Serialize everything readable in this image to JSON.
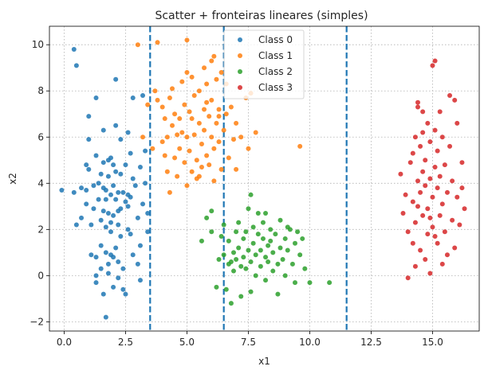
{
  "chart_data": {
    "type": "scatter",
    "title": "Scatter + fronteiras lineares (simples)",
    "xlabel": "x1",
    "ylabel": "x2",
    "xlim": [
      -0.6,
      16.9
    ],
    "ylim": [
      -2.4,
      10.8
    ],
    "xticks": [
      0.0,
      2.5,
      5.0,
      7.5,
      10.0,
      12.5,
      15.0
    ],
    "xtick_labels": [
      "0.0",
      "2.5",
      "5.0",
      "7.5",
      "10.0",
      "12.5",
      "15.0"
    ],
    "yticks": [
      -2,
      0,
      2,
      4,
      6,
      8,
      10
    ],
    "ytick_labels": [
      "−2",
      "0",
      "2",
      "4",
      "6",
      "8",
      "10"
    ],
    "grid": true,
    "legend_position": "top-center",
    "boundaries": {
      "x": [
        3.5,
        6.5,
        11.5
      ],
      "color": "#1f77b4",
      "style": "dashed"
    },
    "series": [
      {
        "name": "Class 0",
        "color": "#1f77b4",
        "points": [
          [
            -0.1,
            3.7
          ],
          [
            0.4,
            9.8
          ],
          [
            0.5,
            9.1
          ],
          [
            0.4,
            3.6
          ],
          [
            0.5,
            2.2
          ],
          [
            0.7,
            3.8
          ],
          [
            0.7,
            2.5
          ],
          [
            0.9,
            3.7
          ],
          [
            0.9,
            4.8
          ],
          [
            1.0,
            6.9
          ],
          [
            0.9,
            3.1
          ],
          [
            1.0,
            5.9
          ],
          [
            1.1,
            0.9
          ],
          [
            1.1,
            2.2
          ],
          [
            1.0,
            4.6
          ],
          [
            1.2,
            3.9
          ],
          [
            1.2,
            2.9
          ],
          [
            1.3,
            7.7
          ],
          [
            1.3,
            5.2
          ],
          [
            1.3,
            0.8
          ],
          [
            1.3,
            -0.3
          ],
          [
            1.3,
            0.0
          ],
          [
            1.4,
            3.3
          ],
          [
            1.4,
            4.0
          ],
          [
            1.5,
            2.4
          ],
          [
            1.5,
            1.3
          ],
          [
            1.5,
            0.3
          ],
          [
            1.5,
            4.4
          ],
          [
            1.6,
            3.8
          ],
          [
            1.6,
            4.9
          ],
          [
            1.6,
            2.8
          ],
          [
            1.6,
            6.3
          ],
          [
            1.6,
            -0.8
          ],
          [
            1.7,
            1.0
          ],
          [
            1.7,
            3.7
          ],
          [
            1.7,
            3.3
          ],
          [
            1.7,
            2.1
          ],
          [
            1.7,
            -1.8
          ],
          [
            1.8,
            5.0
          ],
          [
            1.8,
            4.3
          ],
          [
            1.8,
            2.7
          ],
          [
            1.8,
            0.5
          ],
          [
            1.8,
            0.1
          ],
          [
            1.9,
            3.5
          ],
          [
            1.9,
            5.1
          ],
          [
            1.9,
            1.9
          ],
          [
            1.9,
            0.9
          ],
          [
            2.0,
            4.8
          ],
          [
            2.0,
            2.6
          ],
          [
            2.0,
            3.9
          ],
          [
            2.0,
            0.8
          ],
          [
            2.0,
            -0.5
          ],
          [
            2.1,
            6.5
          ],
          [
            2.1,
            8.5
          ],
          [
            2.1,
            4.5
          ],
          [
            2.1,
            3.3
          ],
          [
            2.1,
            1.2
          ],
          [
            2.2,
            2.2
          ],
          [
            2.2,
            3.6
          ],
          [
            2.2,
            2.8
          ],
          [
            2.2,
            0.6
          ],
          [
            2.2,
            -0.1
          ],
          [
            2.3,
            5.9
          ],
          [
            2.3,
            4.4
          ],
          [
            2.3,
            2.9
          ],
          [
            2.3,
            1.7
          ],
          [
            2.4,
            3.6
          ],
          [
            2.4,
            0.3
          ],
          [
            2.4,
            -0.6
          ],
          [
            2.5,
            4.8
          ],
          [
            2.5,
            3.2
          ],
          [
            2.5,
            -0.8
          ],
          [
            2.6,
            6.2
          ],
          [
            2.6,
            3.5
          ],
          [
            2.6,
            2.0
          ],
          [
            2.7,
            5.3
          ],
          [
            2.7,
            3.4
          ],
          [
            2.7,
            1.8
          ],
          [
            2.8,
            7.7
          ],
          [
            2.8,
            4.2
          ],
          [
            2.8,
            0.9
          ],
          [
            3.0,
            2.5
          ],
          [
            3.0,
            0.5
          ],
          [
            3.1,
            4.7
          ],
          [
            3.1,
            1.3
          ],
          [
            3.1,
            -0.2
          ],
          [
            3.2,
            3.1
          ],
          [
            3.3,
            5.4
          ],
          [
            3.3,
            4.0
          ],
          [
            3.4,
            2.7
          ],
          [
            3.4,
            1.9
          ],
          [
            3.2,
            7.8
          ],
          [
            2.6,
            3.0
          ],
          [
            1.9,
            2.3
          ],
          [
            2.9,
            3.9
          ]
        ]
      },
      {
        "name": "Class 1",
        "color": "#ff7f0e",
        "points": [
          [
            3.0,
            10.0
          ],
          [
            3.8,
            10.1
          ],
          [
            5.0,
            10.2
          ],
          [
            3.8,
            7.6
          ],
          [
            4.0,
            7.3
          ],
          [
            4.1,
            6.8
          ],
          [
            4.2,
            6.0
          ],
          [
            4.2,
            4.5
          ],
          [
            4.3,
            3.6
          ],
          [
            4.4,
            8.1
          ],
          [
            4.4,
            6.5
          ],
          [
            4.5,
            5.1
          ],
          [
            4.5,
            7.0
          ],
          [
            4.6,
            4.3
          ],
          [
            4.7,
            6.8
          ],
          [
            4.7,
            5.5
          ],
          [
            4.8,
            6.2
          ],
          [
            4.9,
            7.4
          ],
          [
            4.9,
            4.9
          ],
          [
            5.0,
            6.0
          ],
          [
            5.0,
            8.8
          ],
          [
            5.0,
            3.9
          ],
          [
            5.1,
            7.1
          ],
          [
            5.1,
            5.4
          ],
          [
            5.2,
            6.8
          ],
          [
            5.2,
            4.5
          ],
          [
            5.3,
            6.1
          ],
          [
            5.3,
            7.8
          ],
          [
            5.4,
            5.0
          ],
          [
            5.4,
            4.2
          ],
          [
            5.5,
            6.6
          ],
          [
            5.5,
            8.0
          ],
          [
            5.6,
            5.7
          ],
          [
            5.6,
            4.7
          ],
          [
            5.7,
            7.2
          ],
          [
            5.7,
            6.3
          ],
          [
            5.8,
            8.3
          ],
          [
            5.8,
            5.2
          ],
          [
            5.9,
            6.9
          ],
          [
            5.9,
            4.8
          ],
          [
            6.0,
            7.6
          ],
          [
            6.0,
            6.0
          ],
          [
            6.0,
            9.3
          ],
          [
            6.1,
            5.5
          ],
          [
            6.1,
            4.1
          ],
          [
            6.2,
            8.5
          ],
          [
            6.2,
            6.6
          ],
          [
            6.3,
            7.2
          ],
          [
            6.3,
            5.8
          ],
          [
            6.4,
            8.8
          ],
          [
            6.4,
            4.6
          ],
          [
            6.5,
            6.3
          ],
          [
            6.6,
            8.3
          ],
          [
            6.7,
            5.1
          ],
          [
            6.8,
            7.3
          ],
          [
            7.0,
            4.6
          ],
          [
            7.0,
            6.6
          ],
          [
            7.2,
            6.0
          ],
          [
            7.4,
            7.7
          ],
          [
            7.5,
            5.5
          ],
          [
            7.6,
            7.9
          ],
          [
            7.8,
            6.2
          ],
          [
            9.6,
            5.6
          ],
          [
            3.2,
            6.0
          ],
          [
            3.4,
            7.4
          ],
          [
            3.6,
            5.5
          ],
          [
            3.7,
            8.0
          ],
          [
            4.0,
            5.8
          ],
          [
            4.3,
            7.7
          ],
          [
            4.6,
            6.1
          ],
          [
            5.2,
            8.6
          ],
          [
            5.7,
            9.0
          ],
          [
            6.1,
            9.5
          ],
          [
            6.6,
            7.0
          ],
          [
            5.5,
            4.3
          ],
          [
            4.8,
            8.4
          ],
          [
            6.3,
            6.9
          ],
          [
            5.8,
            7.5
          ],
          [
            4.1,
            5.2
          ],
          [
            6.9,
            5.9
          ]
        ]
      },
      {
        "name": "Class 2",
        "color": "#2ca02c",
        "points": [
          [
            5.8,
            2.5
          ],
          [
            6.0,
            2.8
          ],
          [
            5.6,
            1.5
          ],
          [
            6.0,
            1.9
          ],
          [
            6.2,
            -0.5
          ],
          [
            6.3,
            0.7
          ],
          [
            6.4,
            1.7
          ],
          [
            6.5,
            2.2
          ],
          [
            6.5,
            0.9
          ],
          [
            6.6,
            -0.6
          ],
          [
            6.7,
            0.5
          ],
          [
            6.7,
            1.5
          ],
          [
            6.8,
            0.6
          ],
          [
            6.8,
            -1.2
          ],
          [
            6.9,
            1.0
          ],
          [
            6.9,
            0.2
          ],
          [
            7.0,
            1.9
          ],
          [
            7.0,
            0.7
          ],
          [
            7.1,
            1.2
          ],
          [
            7.1,
            2.3
          ],
          [
            7.2,
            0.4
          ],
          [
            7.2,
            -0.9
          ],
          [
            7.3,
            1.6
          ],
          [
            7.3,
            0.8
          ],
          [
            7.4,
            1.9
          ],
          [
            7.4,
            0.3
          ],
          [
            7.5,
            2.9
          ],
          [
            7.5,
            1.1
          ],
          [
            7.6,
            0.6
          ],
          [
            7.6,
            -0.7
          ],
          [
            7.7,
            1.4
          ],
          [
            7.7,
            2.1
          ],
          [
            7.8,
            0.9
          ],
          [
            7.8,
            0.0
          ],
          [
            7.9,
            1.8
          ],
          [
            7.9,
            2.7
          ],
          [
            8.0,
            1.1
          ],
          [
            8.0,
            0.4
          ],
          [
            8.1,
            1.6
          ],
          [
            8.1,
            2.3
          ],
          [
            8.2,
            0.8
          ],
          [
            8.2,
            -0.2
          ],
          [
            8.3,
            1.3
          ],
          [
            8.3,
            0.6
          ],
          [
            8.4,
            2.0
          ],
          [
            8.4,
            1.5
          ],
          [
            8.5,
            0.2
          ],
          [
            8.5,
            1.0
          ],
          [
            8.6,
            1.8
          ],
          [
            8.7,
            0.5
          ],
          [
            8.7,
            -0.8
          ],
          [
            8.8,
            1.2
          ],
          [
            8.8,
            2.4
          ],
          [
            8.9,
            0.7
          ],
          [
            9.0,
            1.6
          ],
          [
            9.0,
            0.0
          ],
          [
            9.1,
            1.1
          ],
          [
            9.2,
            2.0
          ],
          [
            9.3,
            0.5
          ],
          [
            9.4,
            1.4
          ],
          [
            9.4,
            -0.3
          ],
          [
            9.5,
            1.9
          ],
          [
            9.6,
            0.9
          ],
          [
            9.7,
            1.6
          ],
          [
            9.8,
            0.3
          ],
          [
            10.0,
            -0.3
          ],
          [
            10.8,
            -0.3
          ],
          [
            7.6,
            3.5
          ],
          [
            8.2,
            2.7
          ],
          [
            9.1,
            2.1
          ]
        ]
      },
      {
        "name": "Class 3",
        "color": "#d62728",
        "points": [
          [
            14.0,
            -0.1
          ],
          [
            13.7,
            4.4
          ],
          [
            13.8,
            2.7
          ],
          [
            13.9,
            3.5
          ],
          [
            14.0,
            1.9
          ],
          [
            14.1,
            4.9
          ],
          [
            14.2,
            3.2
          ],
          [
            14.2,
            1.4
          ],
          [
            14.2,
            5.3
          ],
          [
            14.3,
            0.4
          ],
          [
            14.3,
            2.3
          ],
          [
            14.3,
            6.0
          ],
          [
            14.4,
            4.1
          ],
          [
            14.4,
            7.3
          ],
          [
            14.4,
            3.0
          ],
          [
            14.4,
            7.5
          ],
          [
            14.5,
            1.1
          ],
          [
            14.5,
            5.6
          ],
          [
            14.6,
            2.6
          ],
          [
            14.6,
            4.5
          ],
          [
            14.6,
            6.2
          ],
          [
            14.7,
            0.7
          ],
          [
            14.7,
            3.9
          ],
          [
            14.7,
            5.0
          ],
          [
            14.8,
            1.8
          ],
          [
            14.8,
            2.9
          ],
          [
            14.8,
            6.6
          ],
          [
            14.9,
            4.2
          ],
          [
            14.9,
            0.1
          ],
          [
            14.9,
            5.8
          ],
          [
            15.0,
            9.1
          ],
          [
            15.0,
            3.4
          ],
          [
            15.0,
            2.1
          ],
          [
            15.1,
            9.3
          ],
          [
            15.1,
            4.7
          ],
          [
            15.1,
            6.3
          ],
          [
            15.2,
            1.4
          ],
          [
            15.2,
            3.8
          ],
          [
            15.2,
            5.4
          ],
          [
            15.3,
            2.6
          ],
          [
            15.3,
            4.3
          ],
          [
            15.4,
            0.5
          ],
          [
            15.4,
            3.1
          ],
          [
            15.4,
            6.0
          ],
          [
            15.5,
            1.9
          ],
          [
            15.5,
            4.8
          ],
          [
            15.6,
            3.6
          ],
          [
            15.7,
            7.8
          ],
          [
            15.7,
            5.6
          ],
          [
            15.8,
            2.4
          ],
          [
            15.8,
            4.1
          ],
          [
            15.9,
            7.6
          ],
          [
            15.9,
            1.2
          ],
          [
            16.0,
            3.4
          ],
          [
            16.0,
            6.6
          ],
          [
            16.1,
            2.2
          ],
          [
            16.2,
            4.9
          ],
          [
            16.2,
            3.8
          ],
          [
            16.3,
            2.9
          ],
          [
            14.5,
            3.6
          ],
          [
            14.9,
            2.5
          ],
          [
            15.3,
            7.1
          ],
          [
            15.6,
            0.9
          ],
          [
            14.6,
            7.1
          ],
          [
            15.1,
            1.7
          ]
        ]
      }
    ]
  }
}
